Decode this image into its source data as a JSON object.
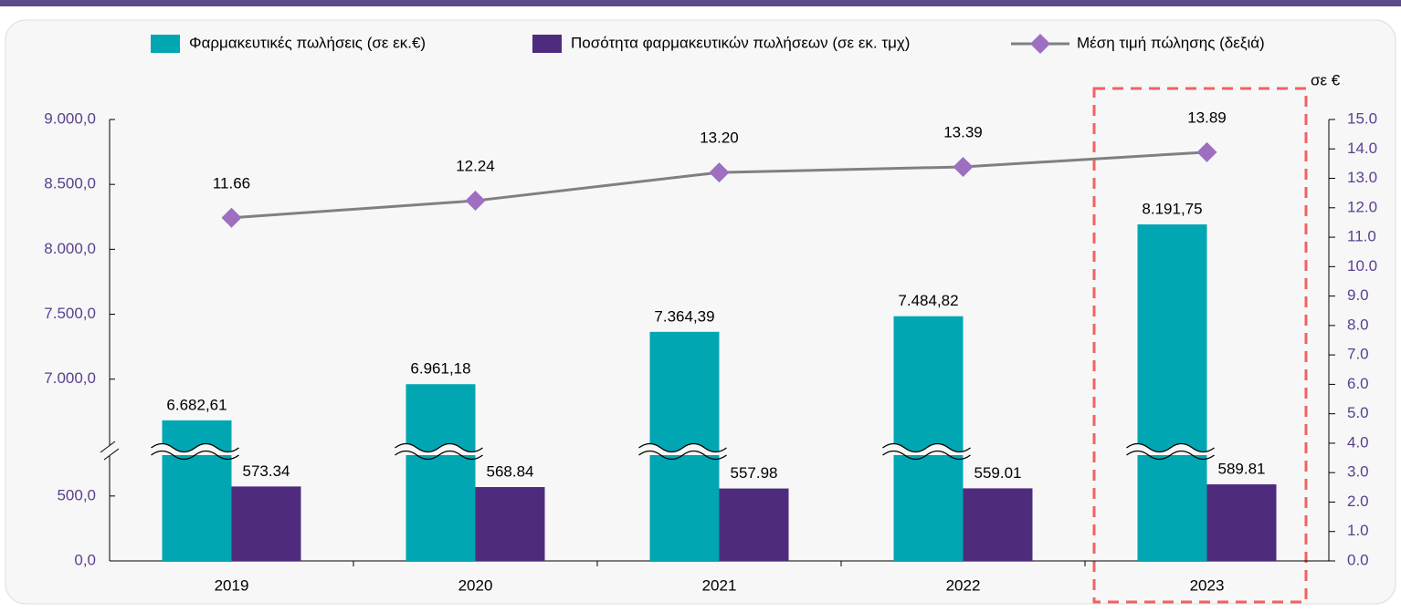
{
  "chart_data": {
    "type": "bar-line",
    "categories": [
      "2019",
      "2020",
      "2021",
      "2022",
      "2023"
    ],
    "series": [
      {
        "name": "Φαρμακευτικές πωλήσεις (σε εκ.€)",
        "color": "#00a6b2",
        "type": "bar",
        "values": [
          6682.61,
          6961.18,
          7364.39,
          7484.82,
          8191.75
        ],
        "value_labels": [
          "6.682,61",
          "6.961,18",
          "7.364,39",
          "7.484,82",
          "8.191,75"
        ]
      },
      {
        "name": "Ποσότητα φαρμακευτικών πωλήσεων (σε εκ. τμχ)",
        "color": "#4f2b7e",
        "type": "bar",
        "values": [
          573.34,
          568.84,
          557.98,
          559.01,
          589.81
        ]
      },
      {
        "name": "Μέση τιμή πώλησης (δεξιά)",
        "color": "#808080",
        "marker_color": "#9e6fc1",
        "type": "line",
        "axis": "y2",
        "values": [
          11.66,
          12.24,
          13.2,
          13.39,
          13.89
        ],
        "value_labels": [
          "11.66",
          "12.24",
          "13.20",
          "13.39",
          "13.89"
        ]
      }
    ],
    "ylim": [
      0,
      9000
    ],
    "ybreak": [
      850,
      6450
    ],
    "yticks": [
      {
        "value": 0,
        "label": "0,0"
      },
      {
        "value": 500,
        "label": "500,0"
      },
      {
        "value": 7000,
        "label": "7.000,0"
      },
      {
        "value": 7500,
        "label": "7.500,0"
      },
      {
        "value": 8000,
        "label": "8.000,0"
      },
      {
        "value": 8500,
        "label": "8.500,0"
      },
      {
        "value": 9000,
        "label": "9.000,0"
      }
    ],
    "y2label": "σε €",
    "y2lim": [
      0,
      15
    ],
    "y2ticks": [
      {
        "value": 0,
        "label": "0.0"
      },
      {
        "value": 1,
        "label": "1.0"
      },
      {
        "value": 2,
        "label": "2.0"
      },
      {
        "value": 3,
        "label": "3.0"
      },
      {
        "value": 4,
        "label": "4.0"
      },
      {
        "value": 5,
        "label": "5.0"
      },
      {
        "value": 6,
        "label": "6.0"
      },
      {
        "value": 7,
        "label": "7.0"
      },
      {
        "value": 8,
        "label": "8.0"
      },
      {
        "value": 9,
        "label": "9.0"
      },
      {
        "value": 10,
        "label": "10.0"
      },
      {
        "value": 11,
        "label": "11.0"
      },
      {
        "value": 12,
        "label": "12.0"
      },
      {
        "value": 13,
        "label": "13.0"
      },
      {
        "value": 14,
        "label": "14.0"
      },
      {
        "value": 15,
        "label": "15.0"
      }
    ],
    "legend": "top",
    "grid": false
  }
}
